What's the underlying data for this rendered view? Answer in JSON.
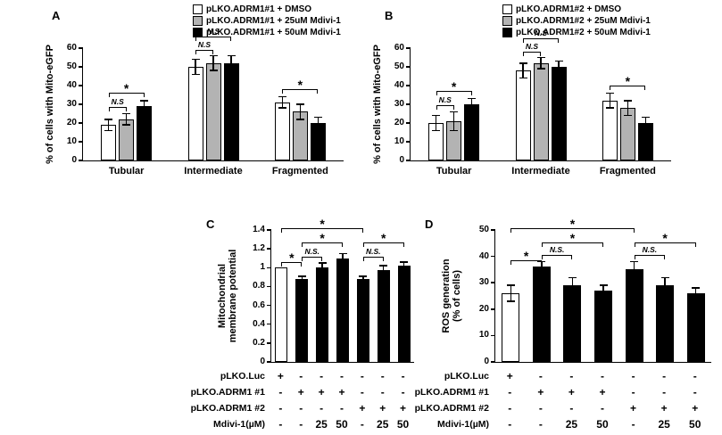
{
  "figure": {
    "background": "#ffffff",
    "panels": {
      "A": {
        "letter": "A"
      },
      "B": {
        "letter": "B"
      },
      "C": {
        "letter": "C"
      },
      "D": {
        "letter": "D"
      }
    }
  },
  "colors": {
    "bar_white": "#ffffff",
    "bar_gray": "#b3b3b3",
    "bar_black": "#000000",
    "axis": "#000000"
  },
  "conditions_table": {
    "rows": [
      {
        "label": "pLKO.Luc",
        "cells": [
          "+",
          "-",
          "-",
          "-",
          "-",
          "-",
          "-"
        ]
      },
      {
        "label": "pLKO.ADRM1 #1",
        "cells": [
          "-",
          "+",
          "+",
          "+",
          "-",
          "-",
          "-"
        ]
      },
      {
        "label": "pLKO.ADRM1 #2",
        "cells": [
          "-",
          "-",
          "-",
          "-",
          "+",
          "+",
          "+"
        ]
      },
      {
        "label": "Mdivi-1(µM)",
        "cells": [
          "-",
          "-",
          "25",
          "50",
          "-",
          "25",
          "50"
        ]
      }
    ]
  },
  "chart_data": [
    {
      "panel": "A",
      "type": "bar",
      "ylabel_lines": [
        "% of cells with Mito-eGFP"
      ],
      "ylim": [
        0,
        60
      ],
      "yticks": [
        0,
        10,
        20,
        30,
        40,
        50,
        60
      ],
      "categories": [
        "Tubular",
        "Intermediate",
        "Fragmented"
      ],
      "series": [
        {
          "name": "pLKO.ADRM1#1 + DMSO",
          "color": "#ffffff",
          "values": [
            19,
            50,
            31
          ],
          "errors": [
            3,
            4,
            3
          ]
        },
        {
          "name": "pLKO.ADRM1#1 + 25uM Mdivi-1",
          "color": "#b3b3b3",
          "values": [
            22,
            52,
            26
          ],
          "errors": [
            3,
            4,
            4
          ]
        },
        {
          "name": "pLKO.ADRM1#1 + 50uM Mdivi-1",
          "color": "#000000",
          "values": [
            29,
            52,
            20
          ],
          "errors": [
            3,
            4,
            3
          ]
        }
      ],
      "legend": [
        {
          "label": "pLKO.ADRM1#1 + DMSO",
          "color": "#ffffff"
        },
        {
          "label": "pLKO.ADRM1#1 + 25uM Mdivi-1",
          "color": "#b3b3b3"
        },
        {
          "label": "pLKO.ADRM1#1 + 50uM Mdivi-1",
          "color": "#000000"
        }
      ],
      "significance": [
        {
          "from": 0,
          "to": 1,
          "label": "N.S",
          "y": 66
        },
        {
          "from": 0,
          "to": 2,
          "label": "*",
          "y": 50
        },
        {
          "from": 3,
          "to": 4,
          "label": "N.S",
          "y": 2
        },
        {
          "from": 3,
          "to": 5,
          "label": "N.S",
          "y": -13
        },
        {
          "from": 6,
          "to": 8,
          "label": "*",
          "y": 46
        }
      ]
    },
    {
      "panel": "B",
      "type": "bar",
      "ylabel_lines": [
        "% of cells with Mito-eGFP"
      ],
      "ylim": [
        0,
        60
      ],
      "yticks": [
        0,
        10,
        20,
        30,
        40,
        50,
        60
      ],
      "categories": [
        "Tubular",
        "Intermediate",
        "Fragmented"
      ],
      "series": [
        {
          "name": "pLKO.ADRM1#2 + DMSO",
          "color": "#ffffff",
          "values": [
            20,
            48,
            32
          ],
          "errors": [
            4,
            4,
            4
          ]
        },
        {
          "name": "pLKO.ADRM1#2 + 25uM Mdivi-1",
          "color": "#b3b3b3",
          "values": [
            21,
            52,
            28
          ],
          "errors": [
            5,
            3,
            4
          ]
        },
        {
          "name": "pLKO.ADRM1#2 + 50uM Mdivi-1",
          "color": "#000000",
          "values": [
            30,
            50,
            20
          ],
          "errors": [
            3,
            3,
            3
          ]
        }
      ],
      "legend": [
        {
          "label": "pLKO.ADRM1#2 + DMSO",
          "color": "#ffffff"
        },
        {
          "label": "pLKO.ADRM1#2 + 25uM Mdivi-1",
          "color": "#b3b3b3"
        },
        {
          "label": "pLKO.ADRM1#2 + 50uM Mdivi-1",
          "color": "#000000"
        }
      ],
      "significance": [
        {
          "from": 0,
          "to": 1,
          "label": "N.S",
          "y": 64
        },
        {
          "from": 0,
          "to": 2,
          "label": "*",
          "y": 48
        },
        {
          "from": 3,
          "to": 4,
          "label": "N.S",
          "y": 4
        },
        {
          "from": 3,
          "to": 5,
          "label": "N.S",
          "y": -11
        },
        {
          "from": 6,
          "to": 8,
          "label": "*",
          "y": 42
        }
      ]
    },
    {
      "panel": "C",
      "type": "bar",
      "ylabel_lines": [
        "Mitochondrial",
        "membrane potential"
      ],
      "ylim": [
        0,
        1.4
      ],
      "yticks": [
        0,
        0.2,
        0.4,
        0.6,
        0.8,
        1,
        1.2,
        1.4
      ],
      "values": [
        1,
        0.88,
        1,
        1.1,
        0.88,
        0.97,
        1.02
      ],
      "errors": [
        0,
        0.03,
        0.05,
        0.05,
        0.03,
        0.05,
        0.04
      ],
      "bar_colors": [
        "#ffffff",
        "#000000",
        "#000000",
        "#000000",
        "#000000",
        "#000000",
        "#000000"
      ],
      "conditions": true,
      "significance": [
        {
          "from": 0,
          "to": 1,
          "label": "*",
          "y": 36
        },
        {
          "from": 1,
          "to": 2,
          "label": "N.S.",
          "y": 30
        },
        {
          "from": 1,
          "to": 3,
          "label": "*",
          "y": 14
        },
        {
          "from": 0,
          "to": 4,
          "label": "*",
          "y": -2
        },
        {
          "from": 4,
          "to": 5,
          "label": "N.S.",
          "y": 30
        },
        {
          "from": 4,
          "to": 6,
          "label": "*",
          "y": 14
        }
      ]
    },
    {
      "panel": "D",
      "type": "bar",
      "ylabel_lines": [
        "ROS generation",
        "(% of cells)"
      ],
      "ylim": [
        0,
        50
      ],
      "yticks": [
        0,
        10,
        20,
        30,
        40,
        50
      ],
      "values": [
        26,
        36,
        29,
        27,
        35,
        29,
        26
      ],
      "errors": [
        3,
        2,
        3,
        2,
        3,
        3,
        2
      ],
      "bar_colors": [
        "#ffffff",
        "#000000",
        "#000000",
        "#000000",
        "#000000",
        "#000000",
        "#000000"
      ],
      "conditions": true,
      "significance": [
        {
          "from": 0,
          "to": 1,
          "label": "*",
          "y": 34
        },
        {
          "from": 1,
          "to": 2,
          "label": "N.S.",
          "y": 28
        },
        {
          "from": 1,
          "to": 3,
          "label": "*",
          "y": 14
        },
        {
          "from": 0,
          "to": 4,
          "label": "*",
          "y": -2
        },
        {
          "from": 4,
          "to": 5,
          "label": "N.S.",
          "y": 28
        },
        {
          "from": 4,
          "to": 6,
          "label": "*",
          "y": 14
        }
      ]
    }
  ]
}
